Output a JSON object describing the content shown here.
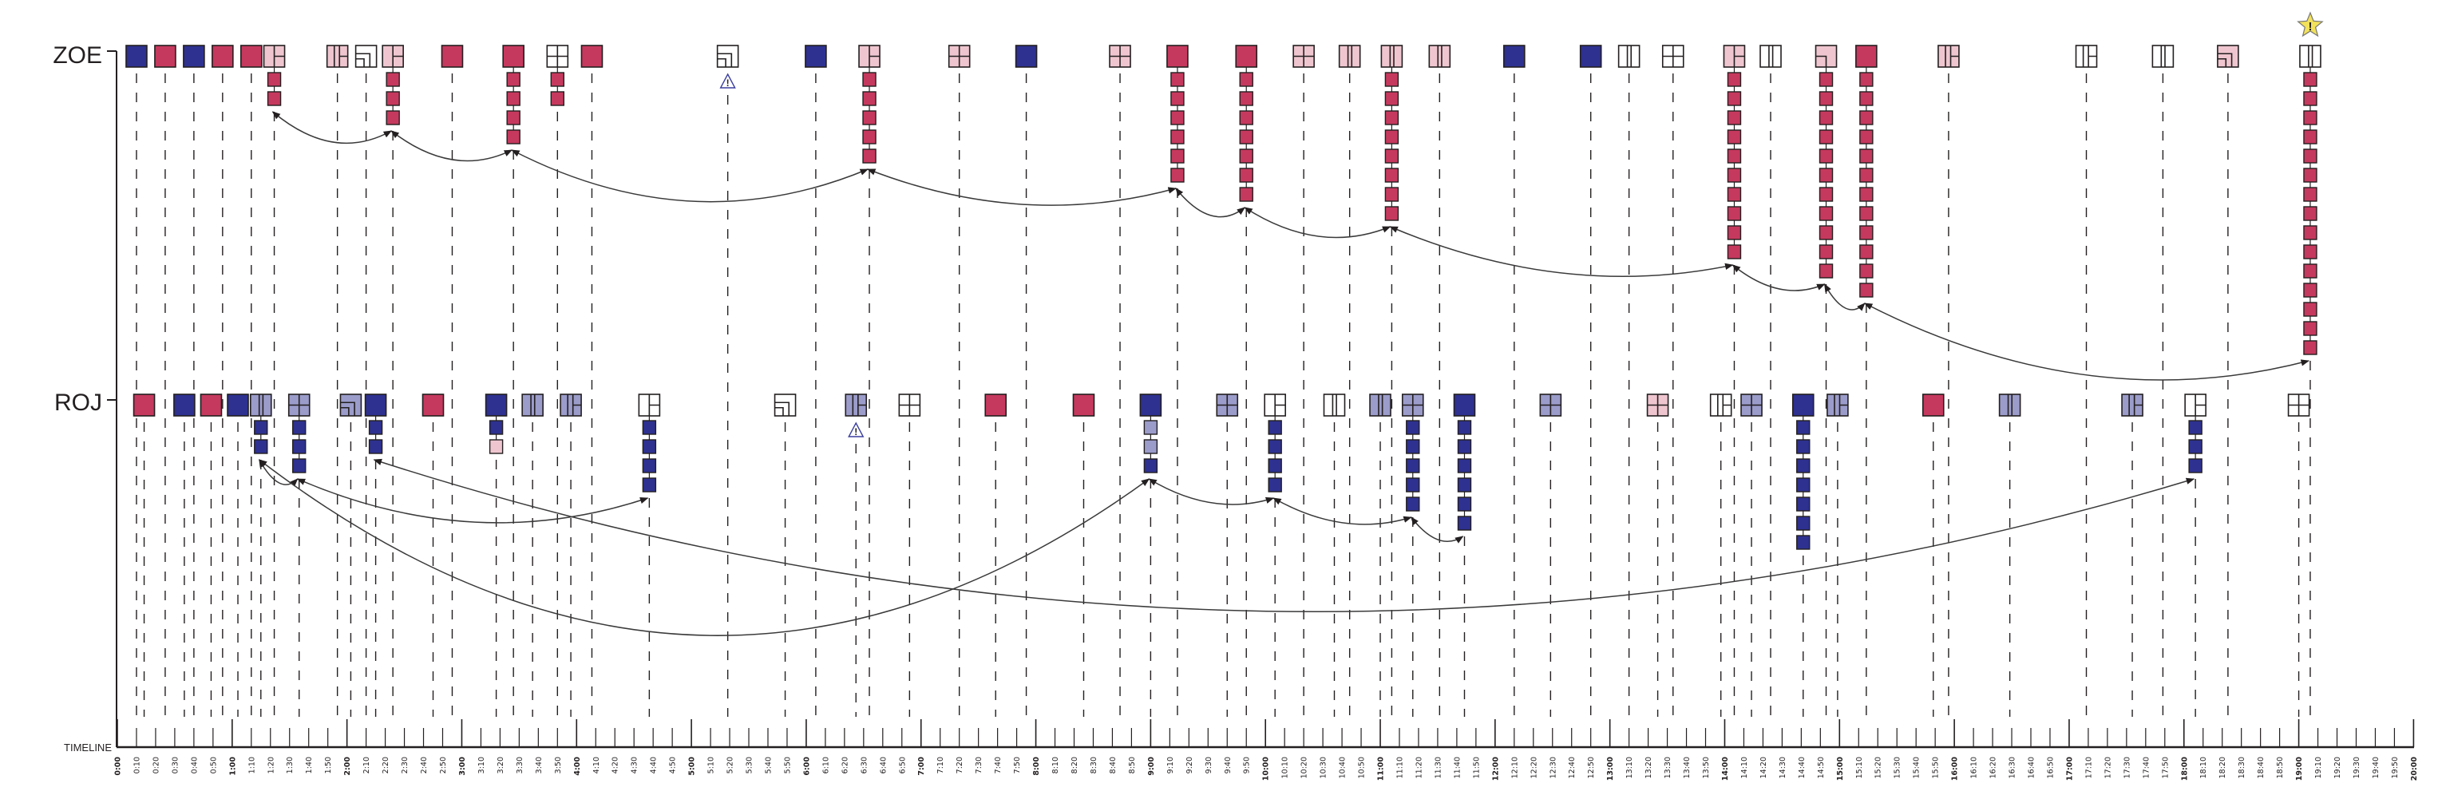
{
  "rows": {
    "zoe": {
      "label": "ZOE",
      "stack_color": "crimson",
      "events": [
        {
          "t": 10,
          "fill": "navy"
        },
        {
          "t": 25,
          "fill": "crimson"
        },
        {
          "t": 40,
          "fill": "navy"
        },
        {
          "t": 55,
          "fill": "crimson"
        },
        {
          "t": 70,
          "fill": "crimson"
        },
        {
          "t": 82,
          "fill": "pink",
          "pattern": "split",
          "stack": 2
        },
        {
          "t": 115,
          "fill": "pink",
          "pattern": "splitbars"
        },
        {
          "t": 130,
          "fill": "white",
          "pattern": "corner"
        },
        {
          "t": 144,
          "fill": "pink",
          "pattern": "split",
          "stack": 3
        },
        {
          "t": 175,
          "fill": "crimson"
        },
        {
          "t": 207,
          "fill": "crimson",
          "stack": 4
        },
        {
          "t": 230,
          "fill": "white",
          "pattern": "grid",
          "stack": 2
        },
        {
          "t": 248,
          "fill": "crimson"
        },
        {
          "t": 319,
          "fill": "white",
          "pattern": "corner",
          "marker": "warning"
        },
        {
          "t": 365,
          "fill": "navy"
        },
        {
          "t": 393,
          "fill": "pink",
          "pattern": "split",
          "stack": 5
        },
        {
          "t": 440,
          "fill": "pink",
          "pattern": "grid"
        },
        {
          "t": 475,
          "fill": "navy"
        },
        {
          "t": 524,
          "fill": "pink",
          "pattern": "grid"
        },
        {
          "t": 554,
          "fill": "crimson",
          "stack": 6
        },
        {
          "t": 590,
          "fill": "crimson",
          "stack": 7
        },
        {
          "t": 620,
          "fill": "pink",
          "pattern": "grid"
        },
        {
          "t": 644,
          "fill": "pink",
          "pattern": "bars"
        },
        {
          "t": 666,
          "fill": "pink",
          "pattern": "bars",
          "stack": 8
        },
        {
          "t": 691,
          "fill": "pink",
          "pattern": "bars"
        },
        {
          "t": 730,
          "fill": "navy"
        },
        {
          "t": 770,
          "fill": "navy"
        },
        {
          "t": 790,
          "fill": "white",
          "pattern": "bars"
        },
        {
          "t": 813,
          "fill": "white",
          "pattern": "grid"
        },
        {
          "t": 845,
          "fill": "pink",
          "pattern": "split",
          "stack": 10
        },
        {
          "t": 864,
          "fill": "white",
          "pattern": "bars"
        },
        {
          "t": 893,
          "fill": "pink",
          "pattern": "splitl",
          "stack": 11
        },
        {
          "t": 914,
          "fill": "crimson",
          "stack": 12
        },
        {
          "t": 957,
          "fill": "pink",
          "pattern": "splitbars"
        },
        {
          "t": 1029,
          "fill": "white",
          "pattern": "splitbars"
        },
        {
          "t": 1069,
          "fill": "white",
          "pattern": "bars"
        },
        {
          "t": 1103,
          "fill": "pink",
          "pattern": "corner"
        },
        {
          "t": 1146,
          "fill": "white",
          "pattern": "bars",
          "stack": 15,
          "marker": "star"
        }
      ],
      "links": [
        [
          5,
          8
        ],
        [
          8,
          10
        ],
        [
          10,
          15
        ],
        [
          15,
          19
        ],
        [
          19,
          20
        ],
        [
          20,
          23
        ],
        [
          23,
          29
        ],
        [
          29,
          31
        ],
        [
          31,
          32
        ],
        [
          32,
          37
        ]
      ]
    },
    "roj": {
      "label": "ROJ",
      "stack_color": "navy",
      "events": [
        {
          "t": 14,
          "fill": "crimson"
        },
        {
          "t": 35,
          "fill": "navy"
        },
        {
          "t": 49,
          "fill": "crimson"
        },
        {
          "t": 63,
          "fill": "navy"
        },
        {
          "t": 75,
          "fill": "lavender",
          "pattern": "bars",
          "stack": 2
        },
        {
          "t": 95,
          "fill": "lavender",
          "pattern": "grid",
          "stack": 3
        },
        {
          "t": 122,
          "fill": "lavender",
          "pattern": "corner"
        },
        {
          "t": 135,
          "fill": "navy",
          "stack": 2
        },
        {
          "t": 165,
          "fill": "crimson"
        },
        {
          "t": 198,
          "fill": "navy",
          "stack": [
            "navy",
            "pink"
          ]
        },
        {
          "t": 217,
          "fill": "lavender",
          "pattern": "bars"
        },
        {
          "t": 237,
          "fill": "lavender",
          "pattern": "splitbars"
        },
        {
          "t": 278,
          "fill": "white",
          "pattern": "split",
          "stack": 4
        },
        {
          "t": 349,
          "fill": "white",
          "pattern": "corner"
        },
        {
          "t": 386,
          "fill": "lavender",
          "pattern": "splitbars",
          "marker": "warning"
        },
        {
          "t": 414,
          "fill": "white",
          "pattern": "grid"
        },
        {
          "t": 459,
          "fill": "crimson"
        },
        {
          "t": 505,
          "fill": "crimson"
        },
        {
          "t": 540,
          "fill": "navy",
          "stack": [
            "lavender",
            "lavender",
            "navy"
          ]
        },
        {
          "t": 580,
          "fill": "lavender",
          "pattern": "grid"
        },
        {
          "t": 605,
          "fill": "white",
          "pattern": "split",
          "stack": 4
        },
        {
          "t": 636,
          "fill": "white",
          "pattern": "bars"
        },
        {
          "t": 660,
          "fill": "lavender",
          "pattern": "bars"
        },
        {
          "t": 677,
          "fill": "lavender",
          "pattern": "grid",
          "stack": 5
        },
        {
          "t": 704,
          "fill": "navy",
          "stack": 6
        },
        {
          "t": 749,
          "fill": "lavender",
          "pattern": "grid"
        },
        {
          "t": 805,
          "fill": "pink",
          "pattern": "grid"
        },
        {
          "t": 838,
          "fill": "white",
          "pattern": "splitbars"
        },
        {
          "t": 854,
          "fill": "lavender",
          "pattern": "grid"
        },
        {
          "t": 881,
          "fill": "navy",
          "stack": 7
        },
        {
          "t": 899,
          "fill": "lavender",
          "pattern": "splitbars"
        },
        {
          "t": 949,
          "fill": "crimson"
        },
        {
          "t": 989,
          "fill": "lavender",
          "pattern": "bars"
        },
        {
          "t": 1053,
          "fill": "lavender",
          "pattern": "splitbars"
        },
        {
          "t": 1086,
          "fill": "white",
          "pattern": "split",
          "stack": 3
        },
        {
          "t": 1140,
          "fill": "white",
          "pattern": "grid"
        }
      ],
      "links": [
        [
          4,
          5
        ],
        [
          5,
          12
        ],
        [
          4,
          18
        ],
        [
          7,
          34
        ],
        [
          18,
          20
        ],
        [
          20,
          23
        ],
        [
          23,
          24
        ]
      ]
    }
  },
  "timeline": {
    "title": "TIMELINE",
    "minutes_per_tick": 10,
    "ticks": [
      "0:00",
      "0:10",
      "0:20",
      "0:30",
      "0:40",
      "0:50",
      "1:00",
      "1:10",
      "1:20",
      "1:30",
      "1:40",
      "1:50",
      "2:00",
      "2:10",
      "2:20",
      "2:30",
      "2:40",
      "2:50",
      "3:00",
      "3:10",
      "3:20",
      "3:30",
      "3:40",
      "3:50",
      "4:00",
      "4:10",
      "4:20",
      "4:30",
      "4:40",
      "4:50",
      "5:00",
      "5:10",
      "5:20",
      "5:30",
      "5:40",
      "5:50",
      "6:00",
      "6:10",
      "6:20",
      "6:30",
      "6:40",
      "6:50",
      "7:00",
      "7:10",
      "7:20",
      "7:30",
      "7:40",
      "7:50",
      "8:00",
      "8:10",
      "8:20",
      "8:30",
      "8:40",
      "8:50",
      "9:00",
      "9:10",
      "9:20",
      "9:30",
      "9:40",
      "9:50",
      "10:00",
      "10:10",
      "10:20",
      "10:30",
      "10:40",
      "10:50",
      "11:00",
      "11:10",
      "11:20",
      "11:30",
      "11:40",
      "11:50",
      "12:00",
      "12:10",
      "12:20",
      "12:30",
      "12:40",
      "12:50",
      "13:00",
      "13:10",
      "13:20",
      "13:30",
      "13:40",
      "13:50",
      "14:00",
      "14:10",
      "14:20",
      "14:30",
      "14:40",
      "14:50",
      "15:00",
      "15:10",
      "15:20",
      "15:30",
      "15:40",
      "15:50",
      "16:00",
      "16:10",
      "16:20",
      "16:30",
      "16:40",
      "16:50",
      "17:00",
      "17:10",
      "17:20",
      "17:30",
      "17:40",
      "17:50",
      "18:00",
      "18:10",
      "18:20",
      "18:30",
      "18:40",
      "18:50",
      "19:00",
      "19:10",
      "19:20",
      "19:30",
      "19:40",
      "19:50",
      "20:00"
    ]
  },
  "markers": {
    "warning": "!",
    "star": "!"
  },
  "colors": {
    "navy": "#2e3190",
    "crimson": "#c6395e",
    "pink": "#efc6d0",
    "lavender": "#9b9cca",
    "white": "#ffffff",
    "ink": "#231f20",
    "star": "#f2e15a",
    "warning": "#3b3f9e"
  }
}
